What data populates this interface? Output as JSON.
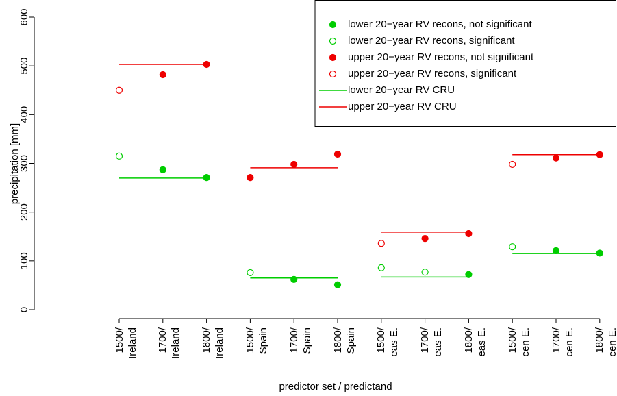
{
  "chart_data": {
    "type": "dotline",
    "x_label": "predictor set / predictand",
    "y_label": "precipitation [mm]",
    "categories": [
      "1500/\nIreland",
      "1700/\nIreland",
      "1800/\nIreland",
      "1500/\nSpain",
      "1700/\nSpain",
      "1800/\nSpain",
      "1500/\neas E.",
      "1700/\neas E.",
      "1800/\neas E.",
      "1500/\ncen E.",
      "1700/\ncen E.",
      "1800/\ncen E."
    ],
    "ylim": [
      0,
      600
    ],
    "yticks": [
      0,
      100,
      200,
      300,
      400,
      500,
      600
    ],
    "legend": "top-right",
    "series": [
      {
        "name": "lower 20−year RV recons, not significant",
        "color": "#00cd00",
        "style": "filled",
        "values": [
          null,
          287,
          271,
          null,
          62,
          51,
          null,
          null,
          72,
          null,
          121,
          116
        ]
      },
      {
        "name": "lower 20−year RV recons, significant",
        "color": "#00cd00",
        "style": "open",
        "values": [
          315,
          null,
          null,
          76,
          null,
          null,
          86,
          77,
          null,
          129,
          null,
          null
        ]
      },
      {
        "name": "upper 20−year RV recons, not significant",
        "color": "#ee0000",
        "style": "filled",
        "values": [
          null,
          482,
          503,
          271,
          298,
          319,
          null,
          146,
          156,
          null,
          311,
          318
        ]
      },
      {
        "name": "upper 20−year RV recons, significant",
        "color": "#ee0000",
        "style": "open",
        "values": [
          450,
          null,
          null,
          null,
          null,
          null,
          136,
          null,
          null,
          298,
          null,
          null
        ]
      },
      {
        "name": "lower 20−year RV CRU",
        "color": "#00cd00",
        "style": "line",
        "values": [
          270,
          270,
          270,
          65,
          65,
          65,
          67,
          67,
          67,
          115,
          115,
          115
        ]
      },
      {
        "name": "upper 20−year RV CRU",
        "color": "#ee0000",
        "style": "line",
        "values": [
          503,
          503,
          503,
          291,
          291,
          291,
          159,
          159,
          159,
          318,
          318,
          318
        ]
      }
    ]
  }
}
